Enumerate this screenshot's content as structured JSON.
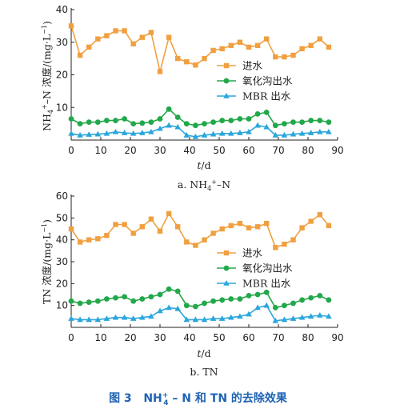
{
  "caption": {
    "label": "图 3",
    "nh_prefix": "NH",
    "nh_sup": "+",
    "nh_sub": "4",
    "rest": " – N 和 TN 的去除效果"
  },
  "colors": {
    "inflow": "#f0a040",
    "oxidation": "#22a84a",
    "mbr": "#2aa6dc"
  },
  "chart_data": [
    {
      "type": "line",
      "subtitle": "a.  NH4+–N",
      "xlabel": "t/d",
      "ylabel": "NH4+–N 浓度/(mg·L−1)",
      "xlim": [
        0,
        90
      ],
      "ylim": [
        0,
        40
      ],
      "xticks": [
        0,
        10,
        20,
        30,
        40,
        50,
        60,
        70,
        80,
        90
      ],
      "yticks": [
        10,
        20,
        30,
        40
      ],
      "grid": false,
      "legend_position": "right-middle",
      "x": [
        0,
        3,
        6,
        9,
        12,
        15,
        18,
        21,
        24,
        27,
        30,
        33,
        36,
        39,
        42,
        45,
        48,
        51,
        54,
        57,
        60,
        63,
        66,
        69,
        72,
        75,
        78,
        81,
        84,
        87
      ],
      "series": [
        {
          "name": "进水",
          "marker": "square",
          "values": [
            35,
            26,
            28.5,
            31,
            32,
            33.5,
            33.5,
            29.5,
            31.5,
            33,
            21,
            31.5,
            25,
            24,
            23,
            25,
            27.5,
            28,
            29,
            30,
            28.5,
            29,
            31,
            25.5,
            25.5,
            26,
            28,
            29,
            31,
            28.5
          ]
        },
        {
          "name": "氧化沟出水",
          "marker": "circle",
          "values": [
            6.5,
            5,
            5.5,
            5.5,
            6,
            6,
            6.5,
            5,
            5.2,
            5.5,
            6.5,
            9.5,
            7,
            5,
            4.5,
            5,
            5.5,
            6,
            6,
            6.5,
            6.5,
            8,
            8.5,
            4.5,
            5,
            5.5,
            5.5,
            6,
            6,
            5.5
          ]
        },
        {
          "name": "MBR 出水",
          "marker": "triangle",
          "values": [
            2,
            1.5,
            1.7,
            1.8,
            2,
            2.5,
            2.2,
            2,
            2.2,
            2.5,
            3.5,
            4.5,
            4,
            1.5,
            1,
            1.5,
            1.8,
            2,
            2,
            2.2,
            2.5,
            4.5,
            4,
            1.5,
            1.5,
            1.8,
            2,
            2.2,
            2.5,
            2.5
          ]
        }
      ]
    },
    {
      "type": "line",
      "subtitle": "b. TN",
      "xlabel": "t/d",
      "ylabel": "TN 浓度/(mg·L−1)",
      "xlim": [
        0,
        90
      ],
      "ylim": [
        0,
        60
      ],
      "xticks": [
        0,
        10,
        20,
        30,
        40,
        50,
        60,
        70,
        80,
        90
      ],
      "yticks": [
        10,
        20,
        30,
        40,
        50,
        60
      ],
      "grid": false,
      "legend_position": "right-middle",
      "x": [
        0,
        3,
        6,
        9,
        12,
        15,
        18,
        21,
        24,
        27,
        30,
        33,
        36,
        39,
        42,
        45,
        48,
        51,
        54,
        57,
        60,
        63,
        66,
        69,
        72,
        75,
        78,
        81,
        84,
        87
      ],
      "series": [
        {
          "name": "进水",
          "marker": "square",
          "values": [
            45,
            39,
            40,
            40.5,
            42,
            47,
            47,
            43,
            46,
            49.5,
            44,
            52,
            46,
            39,
            37.5,
            40,
            43,
            45,
            46.5,
            47.5,
            45.5,
            46,
            47.5,
            36.5,
            38,
            40,
            45.5,
            48.5,
            51.5,
            46.5
          ]
        },
        {
          "name": "氧化沟出水",
          "marker": "circle",
          "values": [
            12,
            11,
            11.5,
            12,
            13,
            13.5,
            14,
            12,
            13,
            14,
            15,
            17.5,
            16.5,
            10,
            9.5,
            11,
            12,
            12.5,
            13,
            13,
            14.5,
            15,
            16,
            9,
            10,
            11,
            12.5,
            13.5,
            14.5,
            12.5
          ]
        },
        {
          "name": "MBR 出水",
          "marker": "triangle",
          "values": [
            4,
            3.5,
            3.5,
            3.5,
            4,
            4.5,
            4.5,
            4,
            4.5,
            5,
            7.5,
            9,
            8.5,
            3.5,
            3.5,
            3.5,
            4,
            4,
            4.5,
            5,
            6,
            9,
            10,
            3,
            3.5,
            4,
            4.5,
            5,
            5.5,
            5
          ]
        }
      ]
    }
  ]
}
